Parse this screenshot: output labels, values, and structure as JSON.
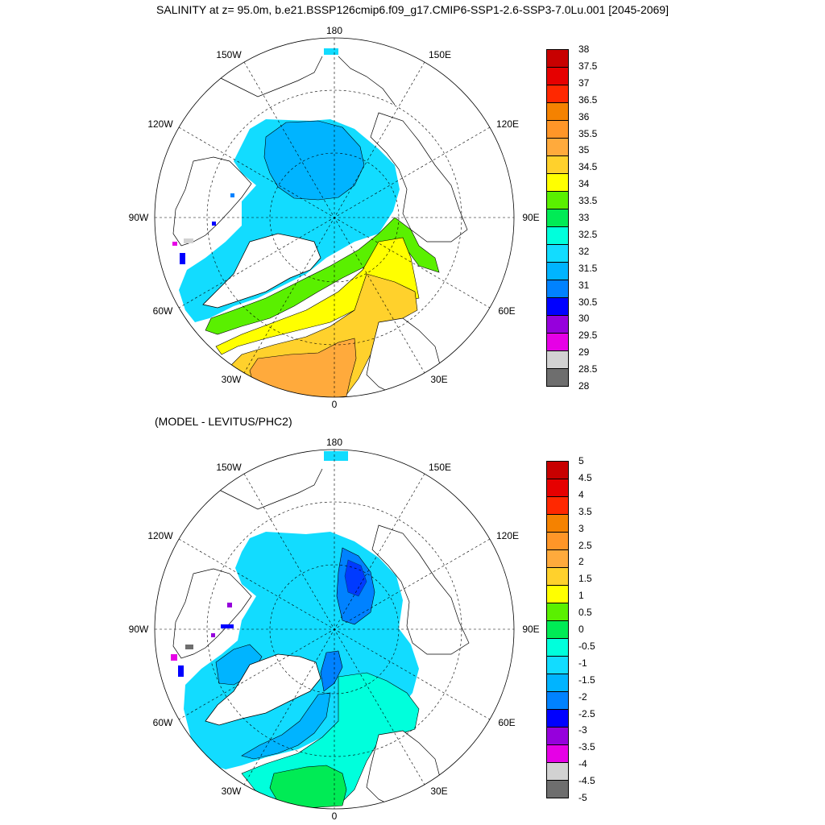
{
  "title": "SALINITY at z=  95.0m, b.e21.BSSP126cmip6.f09_g17.CMIP6-SSP1-2.6-SSP3-7.0Lu.001 [2045-2069]",
  "subtitle": "(MODEL - LEVITUS/PHC2)",
  "longitude_labels": [
    "180",
    "150E",
    "120E",
    "90E",
    "60E",
    "30E",
    "0",
    "30W",
    "60W",
    "90W",
    "120W",
    "150W"
  ],
  "panels": [
    {
      "name": "salinity",
      "colorbar": {
        "ticks": [
          "38",
          "37.5",
          "37",
          "36.5",
          "36",
          "35.5",
          "35",
          "34.5",
          "34",
          "33.5",
          "33",
          "32.5",
          "32",
          "31.5",
          "31",
          "30.5",
          "30",
          "29.5",
          "29",
          "28.5",
          "28"
        ],
        "colors": [
          "#c80000",
          "#e60000",
          "#ff2800",
          "#f58200",
          "#ff9628",
          "#ffaa3c",
          "#ffd12c",
          "#ffff00",
          "#5af000",
          "#00eb55",
          "#00ffdc",
          "#12dcff",
          "#00b4ff",
          "#0082ff",
          "#0000ff",
          "#9600dc",
          "#e600e6",
          "#d2d2d2",
          "#6e6e6e"
        ]
      },
      "regions": {
        "central_arctic": "#00b4ff",
        "shelf": "#12dcff",
        "transition_green": "#5af000",
        "front_teal": "#00ffdc",
        "atlantic_yellow": "#ffff00",
        "atlantic_orange": "#ffd12c",
        "nordic_orange": "#ffaa3c"
      }
    },
    {
      "name": "difference",
      "colorbar": {
        "ticks": [
          "5",
          "4.5",
          "4",
          "3.5",
          "3",
          "2.5",
          "2",
          "1.5",
          "1",
          "0.5",
          "0",
          "-0.5",
          "-1",
          "-1.5",
          "-2",
          "-2.5",
          "-3",
          "-3.5",
          "-4",
          "-4.5",
          "-5"
        ],
        "colors": [
          "#c80000",
          "#e60000",
          "#ff2800",
          "#f58200",
          "#ff9628",
          "#ffaa3c",
          "#ffd12c",
          "#ffff00",
          "#5af000",
          "#00eb55",
          "#00ffdc",
          "#12dcff",
          "#00b4ff",
          "#0082ff",
          "#0000ff",
          "#9600dc",
          "#e600e6",
          "#d2d2d2",
          "#6e6e6e"
        ]
      },
      "regions": {
        "arctic_basin": "#12dcff",
        "deep_anomaly": "#0082ff",
        "nordic_teal": "#00ffdc",
        "nordic_green": "#00eb55",
        "baffin": "#00b4ff"
      }
    }
  ]
}
